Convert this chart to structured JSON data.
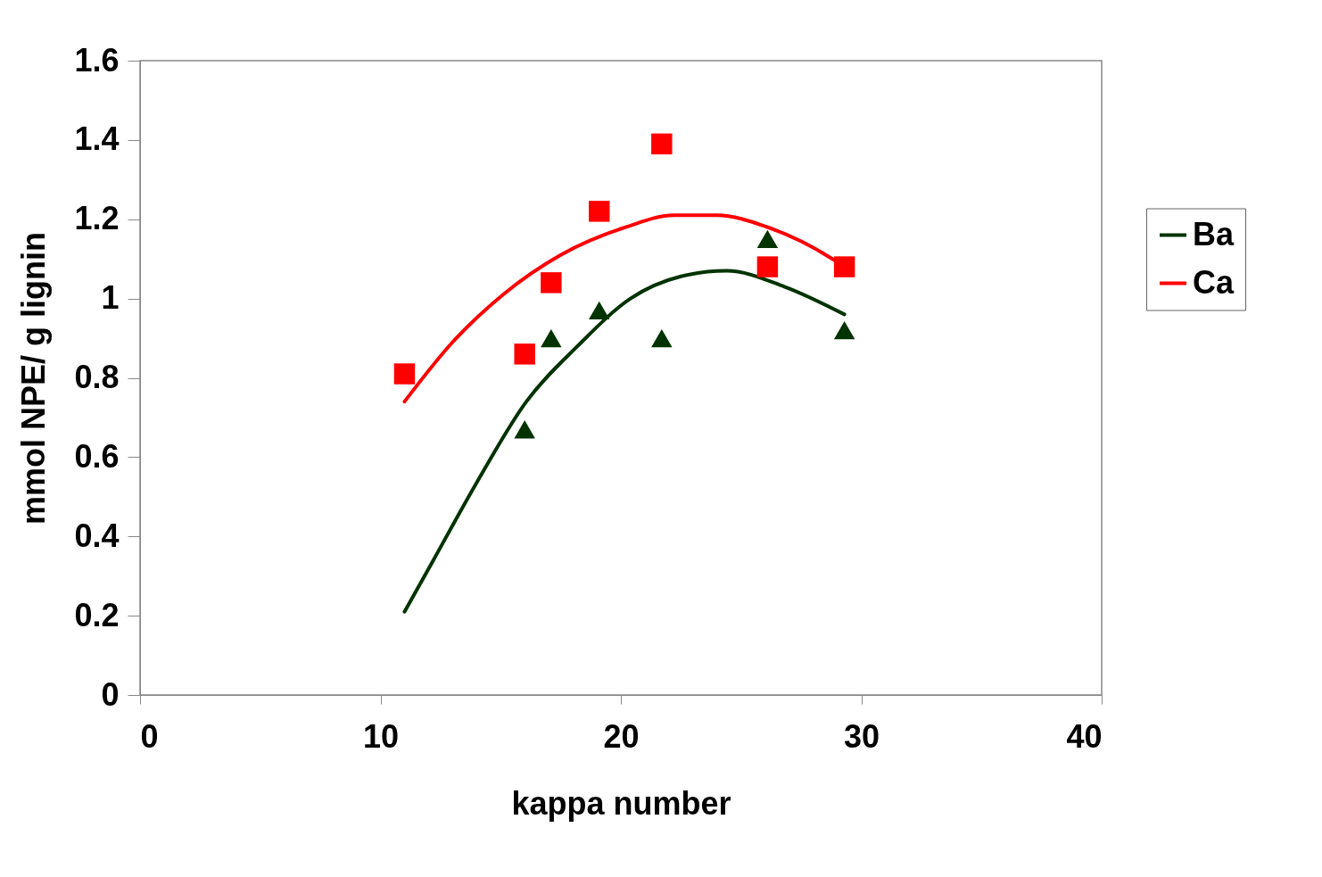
{
  "chart_data": {
    "type": "scatter",
    "xlabel": "kappa number",
    "ylabel": "mmol NPE/ g lignin",
    "xlim": [
      0,
      40
    ],
    "xticks": [
      0,
      10,
      20,
      30,
      40
    ],
    "ylim": [
      0,
      1.6
    ],
    "yticks": [
      0,
      0.2,
      0.4,
      0.6,
      0.8,
      1,
      1.2,
      1.4,
      1.6
    ],
    "grid": false,
    "legend": "right",
    "series": [
      {
        "name": "Ba",
        "type": "line",
        "color": "#003300",
        "line_style": "solid",
        "x": [
          11.0,
          12.2,
          13.95,
          16.07,
          18.2,
          20.4,
          22.8,
          24.4,
          26.8,
          29.3
        ],
        "values": [
          0.21,
          0.34,
          0.53,
          0.74,
          0.88,
          1.0,
          1.06,
          1.07,
          1.03,
          0.96
        ]
      },
      {
        "name": "Ca",
        "type": "line",
        "color": "#ff0000",
        "line_style": "solid",
        "x": [
          11.0,
          13.0,
          15.1,
          17.5,
          20.2,
          22.2,
          24.0,
          26.1,
          28.8,
          29.3
        ],
        "values": [
          0.74,
          0.89,
          1.01,
          1.11,
          1.18,
          1.21,
          1.21,
          1.18,
          1.1,
          1.08
        ]
      },
      {
        "marker": "triangle",
        "color": "#003300",
        "x": [
          16.0,
          17.1,
          19.1,
          21.7,
          26.1,
          29.3
        ],
        "values": [
          0.67,
          0.9,
          0.97,
          0.9,
          1.15,
          0.92
        ]
      },
      {
        "marker": "square",
        "color": "#ff0000",
        "x": [
          11.0,
          16.0,
          17.1,
          19.1,
          21.7,
          26.1,
          29.3
        ],
        "values": [
          0.81,
          0.86,
          1.04,
          1.22,
          1.39,
          1.08,
          1.08
        ]
      }
    ]
  }
}
